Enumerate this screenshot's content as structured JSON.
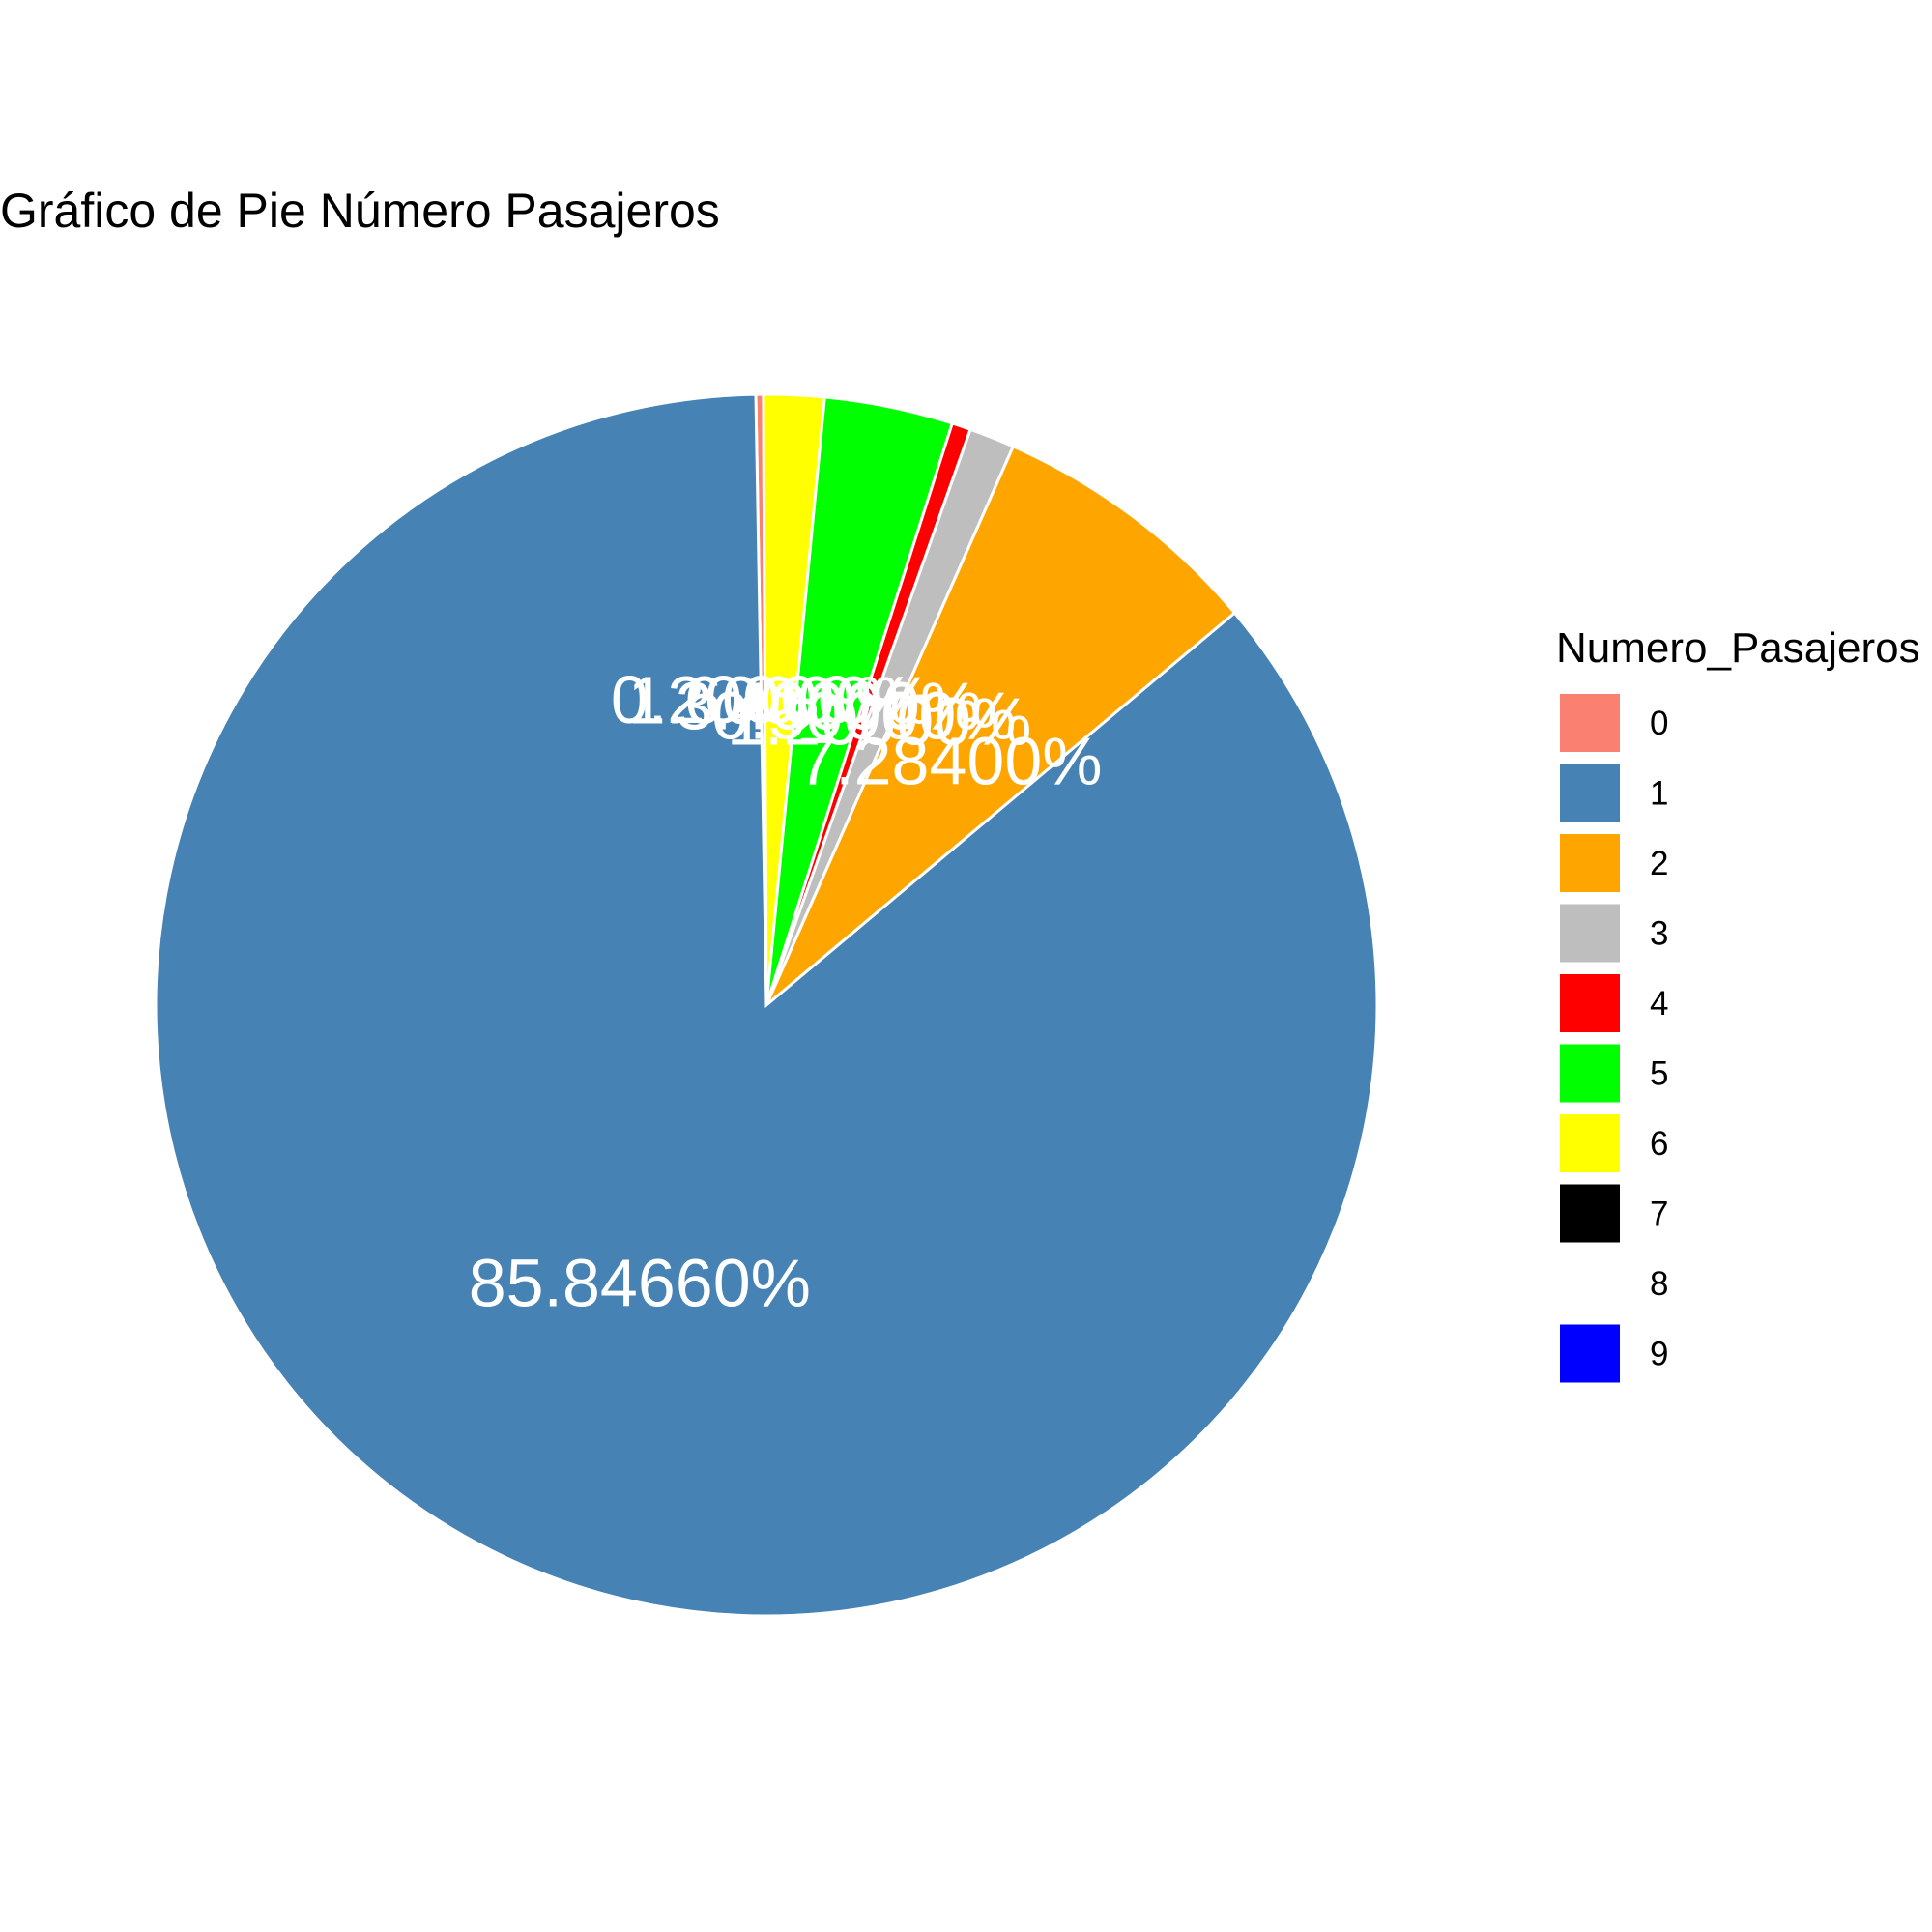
{
  "chart_data": {
    "type": "pie",
    "title": "Gráfico de Pie Número Pasajeros",
    "legend_title": "Numero_Pasajeros",
    "legend_position": "right",
    "start_angle_deg": -1,
    "direction": "clockwise",
    "slices": [
      {
        "category": "0",
        "value": 0.2,
        "label": "0.20000%",
        "color": "#fa8072"
      },
      {
        "category": "6",
        "value": 1.6,
        "label": "1.60000%",
        "color": "#ffff00"
      },
      {
        "category": "5",
        "value": 3.4,
        "label": "3.40000%",
        "color": "#00ff00"
      },
      {
        "category": "4",
        "value": 0.5,
        "label": "0.50000%",
        "color": "#ff0000"
      },
      {
        "category": "3",
        "value": 1.2,
        "label": "1.20000%",
        "color": "#bebebe"
      },
      {
        "category": "2",
        "value": 7.284,
        "label": "7.28400%",
        "color": "#ffa500"
      },
      {
        "category": "1",
        "value": 85.8466,
        "label": "85.84660%",
        "color": "#4682b4"
      }
    ],
    "legend": [
      {
        "category": "0",
        "color": "#fa8072"
      },
      {
        "category": "1",
        "color": "#4682b4"
      },
      {
        "category": "2",
        "color": "#ffa500"
      },
      {
        "category": "3",
        "color": "#bebebe"
      },
      {
        "category": "4",
        "color": "#ff0000"
      },
      {
        "category": "5",
        "color": "#00ff00"
      },
      {
        "category": "6",
        "color": "#ffff00"
      },
      {
        "category": "7",
        "color": "#000000"
      },
      {
        "category": "8",
        "color": "#ffffff"
      },
      {
        "category": "9",
        "color": "#0000ff"
      }
    ]
  }
}
